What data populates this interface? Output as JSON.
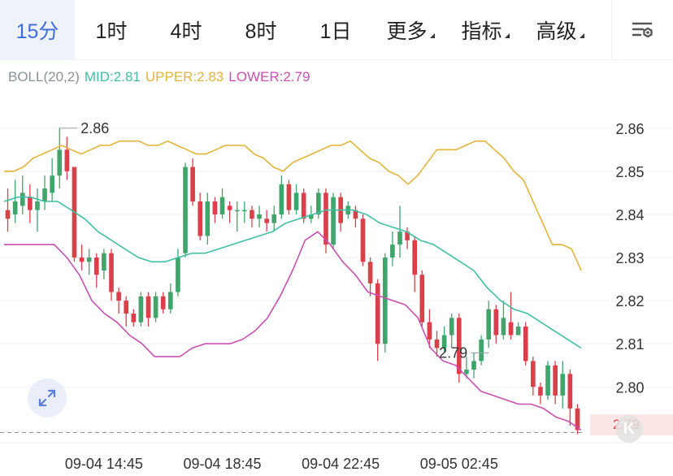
{
  "tabs": [
    {
      "label": "15分",
      "active": true
    },
    {
      "label": "1时"
    },
    {
      "label": "4时"
    },
    {
      "label": "8时"
    },
    {
      "label": "1日"
    },
    {
      "label": "更多",
      "dropdown": true
    },
    {
      "label": "指标",
      "dropdown": true
    },
    {
      "label": "高级",
      "dropdown": true
    }
  ],
  "settings_icon": "chart-settings-icon",
  "indicator": {
    "name": "BOLL(20,2)",
    "mid_label": "MID:2.81",
    "upper_label": "UPPER:2.83",
    "lower_label": "LOWER:2.79",
    "colors": {
      "name": "#8a8f99",
      "mid": "#3fbfa3",
      "upper": "#e2b43a",
      "lower": "#c94fb0"
    }
  },
  "last_price": "2.79",
  "k_badge": "K",
  "expand_icon": "expand-arrows-icon",
  "chart_data": {
    "type": "candlestick",
    "y_ticks": [
      "2.86",
      "2.85",
      "2.84",
      "2.83",
      "2.82",
      "2.81",
      "2.80"
    ],
    "ylim": [
      2.788,
      2.869
    ],
    "x_ticks": [
      "09-04 14:45",
      "09-04 18:45",
      "09-04 22:45",
      "09-05 02:45"
    ],
    "x_tick_index": [
      13,
      29,
      45,
      61
    ],
    "high_marker": "2.86",
    "high_marker_index": 7,
    "low_marker": "2.79",
    "low_marker_index": 65,
    "colors": {
      "up": "#3fa56b",
      "down": "#d9404a",
      "grid": "#eef0f4",
      "axis_text": "#333333"
    },
    "candles": [
      [
        2.841,
        2.839,
        2.846,
        2.836
      ],
      [
        2.84,
        2.843,
        2.848,
        2.838
      ],
      [
        2.842,
        2.845,
        2.849,
        2.84
      ],
      [
        2.844,
        2.841,
        2.847,
        2.838
      ],
      [
        2.841,
        2.843,
        2.846,
        2.836
      ],
      [
        2.843,
        2.846,
        2.849,
        2.841
      ],
      [
        2.845,
        2.849,
        2.853,
        2.843
      ],
      [
        2.849,
        2.855,
        2.86,
        2.846
      ],
      [
        2.855,
        2.85,
        2.858,
        2.848
      ],
      [
        2.851,
        2.83,
        2.851,
        2.829
      ],
      [
        2.83,
        2.829,
        2.833,
        2.827
      ],
      [
        2.829,
        2.83,
        2.832,
        2.826
      ],
      [
        2.83,
        2.826,
        2.831,
        2.823
      ],
      [
        2.827,
        2.831,
        2.832,
        2.825
      ],
      [
        2.831,
        2.822,
        2.832,
        2.82
      ],
      [
        2.822,
        2.82,
        2.823,
        2.817
      ],
      [
        2.82,
        2.817,
        2.821,
        2.814
      ],
      [
        2.817,
        2.815,
        2.818,
        2.814
      ],
      [
        2.815,
        2.821,
        2.822,
        2.814
      ],
      [
        2.821,
        2.816,
        2.822,
        2.814
      ],
      [
        2.816,
        2.821,
        2.822,
        2.815
      ],
      [
        2.821,
        2.818,
        2.822,
        2.817
      ],
      [
        2.818,
        2.822,
        2.824,
        2.817
      ],
      [
        2.822,
        2.83,
        2.832,
        2.821
      ],
      [
        2.831,
        2.851,
        2.852,
        2.83
      ],
      [
        2.851,
        2.843,
        2.853,
        2.842
      ],
      [
        2.843,
        2.835,
        2.845,
        2.834
      ],
      [
        2.835,
        2.843,
        2.845,
        2.833
      ],
      [
        2.843,
        2.84,
        2.844,
        2.838
      ],
      [
        2.84,
        2.844,
        2.846,
        2.839
      ],
      [
        2.842,
        2.841,
        2.843,
        2.838
      ],
      [
        2.841,
        2.841,
        2.843,
        2.836
      ],
      [
        2.841,
        2.841,
        2.843,
        2.838
      ],
      [
        2.841,
        2.839,
        2.842,
        2.837
      ],
      [
        2.839,
        2.84,
        2.842,
        2.837
      ],
      [
        2.839,
        2.838,
        2.841,
        2.836
      ],
      [
        2.838,
        2.84,
        2.842,
        2.836
      ],
      [
        2.84,
        2.847,
        2.849,
        2.839
      ],
      [
        2.847,
        2.841,
        2.848,
        2.84
      ],
      [
        2.841,
        2.845,
        2.847,
        2.84
      ],
      [
        2.845,
        2.839,
        2.846,
        2.838
      ],
      [
        2.839,
        2.84,
        2.842,
        2.838
      ],
      [
        2.84,
        2.845,
        2.846,
        2.839
      ],
      [
        2.845,
        2.833,
        2.846,
        2.831
      ],
      [
        2.833,
        2.844,
        2.845,
        2.832
      ],
      [
        2.844,
        2.838,
        2.845,
        2.836
      ],
      [
        2.84,
        2.842,
        2.843,
        2.839
      ],
      [
        2.841,
        2.839,
        2.842,
        2.837
      ],
      [
        2.839,
        2.829,
        2.84,
        2.828
      ],
      [
        2.829,
        2.824,
        2.83,
        2.821
      ],
      [
        2.824,
        2.81,
        2.825,
        2.806
      ],
      [
        2.81,
        2.83,
        2.831,
        2.808
      ],
      [
        2.83,
        2.833,
        2.836,
        2.828
      ],
      [
        2.833,
        2.836,
        2.842,
        2.83
      ],
      [
        2.836,
        2.834,
        2.837,
        2.832
      ],
      [
        2.834,
        2.826,
        2.835,
        2.822
      ],
      [
        2.826,
        2.815,
        2.827,
        2.814
      ],
      [
        2.815,
        2.811,
        2.818,
        2.809
      ],
      [
        2.811,
        2.809,
        2.813,
        2.807
      ],
      [
        2.809,
        2.812,
        2.814,
        2.808
      ],
      [
        2.812,
        2.816,
        2.817,
        2.809
      ],
      [
        2.816,
        2.803,
        2.817,
        2.801
      ],
      [
        2.803,
        2.804,
        2.807,
        2.802
      ],
      [
        2.804,
        2.806,
        2.808,
        2.802
      ],
      [
        2.806,
        2.811,
        2.812,
        2.805
      ],
      [
        2.811,
        2.818,
        2.82,
        2.809
      ],
      [
        2.818,
        2.812,
        2.819,
        2.81
      ],
      [
        2.812,
        2.816,
        2.82,
        2.811
      ],
      [
        2.815,
        2.812,
        2.822,
        2.811
      ],
      [
        2.812,
        2.814,
        2.815,
        2.812
      ],
      [
        2.814,
        2.806,
        2.815,
        2.805
      ],
      [
        2.806,
        2.8,
        2.807,
        2.798
      ],
      [
        2.8,
        2.798,
        2.801,
        2.796
      ],
      [
        2.798,
        2.805,
        2.806,
        2.797
      ],
      [
        2.805,
        2.798,
        2.806,
        2.796
      ],
      [
        2.798,
        2.803,
        2.806,
        2.795
      ],
      [
        2.803,
        2.795,
        2.804,
        2.791
      ],
      [
        2.795,
        2.79,
        2.796,
        2.789
      ]
    ],
    "series": [
      {
        "name": "UPPER",
        "values": [
          2.85,
          2.85,
          2.851,
          2.853,
          2.854,
          2.855,
          2.856,
          2.855,
          2.854,
          2.855,
          2.856,
          2.856,
          2.857,
          2.857,
          2.857,
          2.856,
          2.856,
          2.857,
          2.856,
          2.855,
          2.854,
          2.854,
          2.855,
          2.856,
          2.856,
          2.856,
          2.854,
          2.853,
          2.851,
          2.85,
          2.852,
          2.853,
          2.854,
          2.855,
          2.856,
          2.856,
          2.857,
          2.855,
          2.853,
          2.852,
          2.85,
          2.849,
          2.847,
          2.849,
          2.852,
          2.855,
          2.855,
          2.855,
          2.856,
          2.857,
          2.857,
          2.855,
          2.853,
          2.85,
          2.848,
          2.843,
          2.838,
          2.833,
          2.833,
          2.832,
          2.827
        ]
      },
      {
        "name": "MID",
        "values": [
          2.843,
          2.844,
          2.844,
          2.843,
          2.843,
          2.841,
          2.839,
          2.836,
          2.834,
          2.832,
          2.83,
          2.829,
          2.829,
          2.83,
          2.831,
          2.831,
          2.832,
          2.833,
          2.834,
          2.835,
          2.836,
          2.838,
          2.839,
          2.84,
          2.841,
          2.841,
          2.841,
          2.84,
          2.838,
          2.837,
          2.836,
          2.834,
          2.833,
          2.831,
          2.829,
          2.827,
          2.823,
          2.82,
          2.818,
          2.817,
          2.815,
          2.813,
          2.811,
          2.809
        ]
      },
      {
        "name": "LOWER",
        "values": [
          2.833,
          2.833,
          2.833,
          2.833,
          2.833,
          2.83,
          2.826,
          2.82,
          2.817,
          2.815,
          2.812,
          2.81,
          2.807,
          2.807,
          2.807,
          2.809,
          2.81,
          2.81,
          2.81,
          2.811,
          2.813,
          2.816,
          2.821,
          2.827,
          2.834,
          2.836,
          2.833,
          2.829,
          2.826,
          2.822,
          2.821,
          2.82,
          2.819,
          2.816,
          2.809,
          2.806,
          2.805,
          2.802,
          2.799,
          2.798,
          2.797,
          2.796,
          2.796,
          2.795,
          2.793,
          2.792,
          2.79
        ]
      }
    ]
  }
}
